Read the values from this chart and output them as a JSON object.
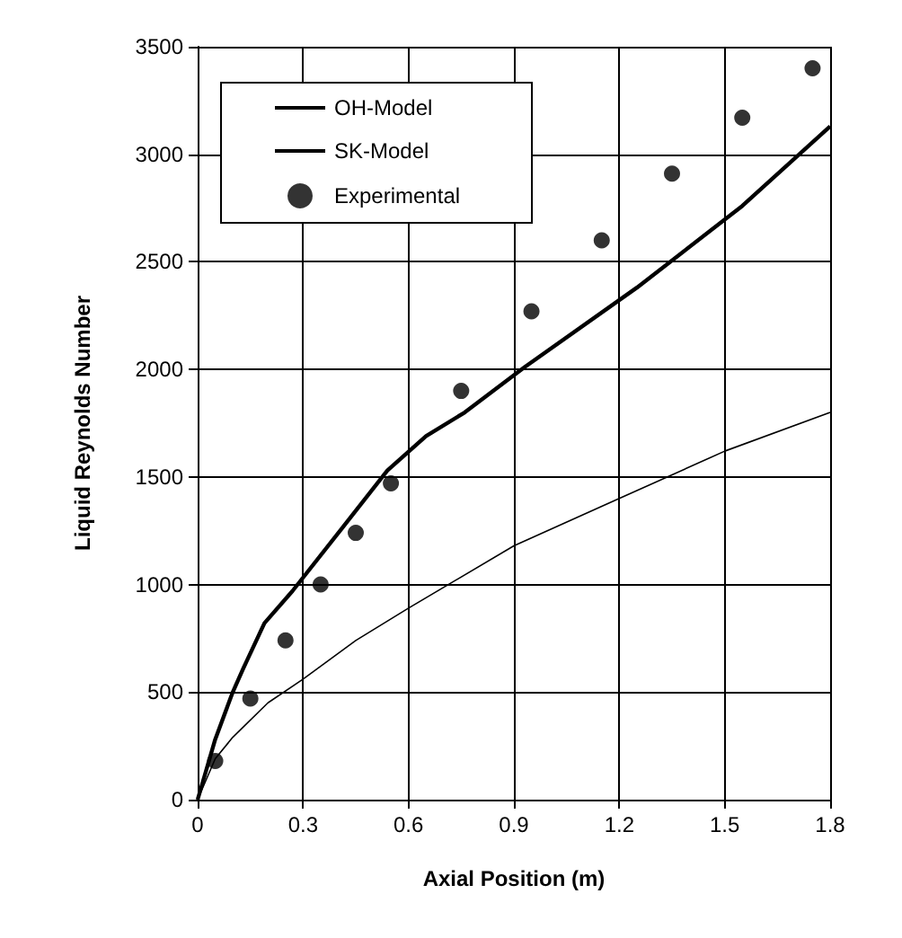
{
  "chart_data": {
    "type": "line",
    "xlabel": "Axial Position (m)",
    "ylabel": "Liquid Reynolds Number",
    "xlim": [
      0,
      1.8
    ],
    "xticks": [
      0,
      0.3,
      0.6,
      0.9,
      1.2,
      1.5,
      1.8
    ],
    "ylim": [
      0,
      3500
    ],
    "yticks": [
      0,
      500,
      1000,
      1500,
      2000,
      2500,
      3000,
      3500
    ],
    "grid": true,
    "legend": "top left",
    "line_style": "solid",
    "series": [
      {
        "name": "OH-Model",
        "color": "#000000",
        "marker": "none",
        "x": [
          0,
          0.05,
          0.1,
          0.2,
          0.3,
          0.45,
          0.6,
          0.9,
          1.2,
          1.5,
          1.8
        ],
        "values": [
          0,
          190,
          290,
          450,
          560,
          740,
          890,
          1180,
          1400,
          1620,
          1800
        ]
      },
      {
        "name": "SK-Model",
        "color": "#000000",
        "marker": "none",
        "x": [
          0,
          0.05,
          0.1,
          0.13,
          0.19,
          0.27,
          0.41,
          0.54,
          0.65,
          0.76,
          0.93,
          1.25,
          1.55,
          1.8
        ],
        "values": [
          0,
          280,
          500,
          610,
          820,
          970,
          1260,
          1530,
          1690,
          1800,
          2010,
          2380,
          2760,
          3130
        ]
      },
      {
        "name": "Experimental",
        "type": "scatter",
        "color": "#000000",
        "marker": "circle",
        "x": [
          0.05,
          0.15,
          0.25,
          0.35,
          0.45,
          0.55,
          0.75,
          0.95,
          1.15,
          1.35,
          1.55,
          1.75
        ],
        "values": [
          180,
          470,
          740,
          1000,
          1240,
          1470,
          1900,
          2270,
          2600,
          2910,
          3170,
          3400
        ]
      }
    ]
  }
}
